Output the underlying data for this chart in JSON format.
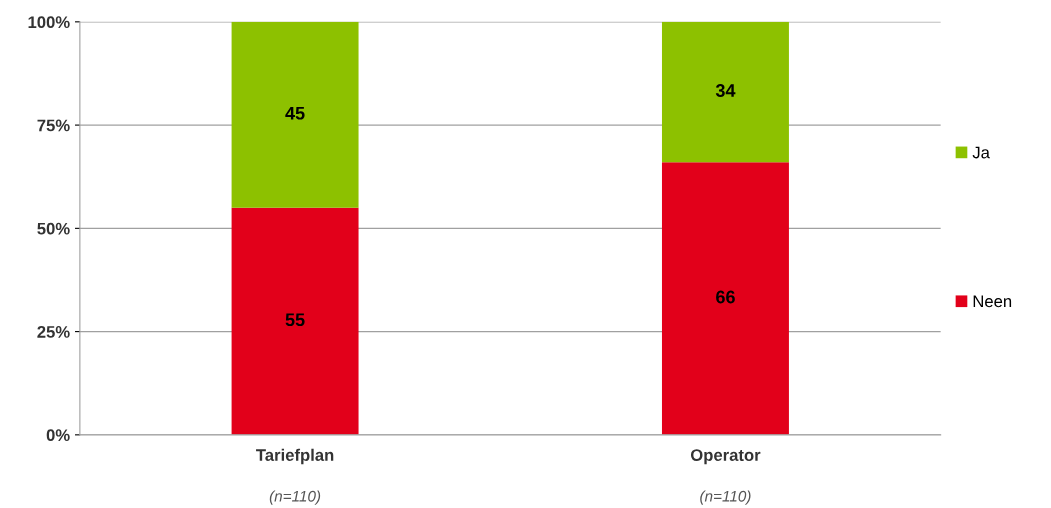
{
  "chart_data": {
    "type": "bar",
    "stacked": true,
    "categories": [
      "Tariefplan",
      "Operator"
    ],
    "series": [
      {
        "name": "Neen",
        "color": "#e2001a",
        "values": [
          55,
          66
        ]
      },
      {
        "name": "Ja",
        "color": "#8dc100",
        "values": [
          45,
          34
        ]
      }
    ],
    "ylim": [
      0,
      100
    ],
    "yticks": [
      {
        "value": 0,
        "label": "0%"
      },
      {
        "value": 25,
        "label": "25%"
      },
      {
        "value": 50,
        "label": "50%"
      },
      {
        "value": 75,
        "label": "75%"
      },
      {
        "value": 100,
        "label": "100%"
      }
    ],
    "grid": "y",
    "legend": "right",
    "data_labels": true,
    "annotations": [
      "(n=110)",
      "(n=110)"
    ]
  }
}
